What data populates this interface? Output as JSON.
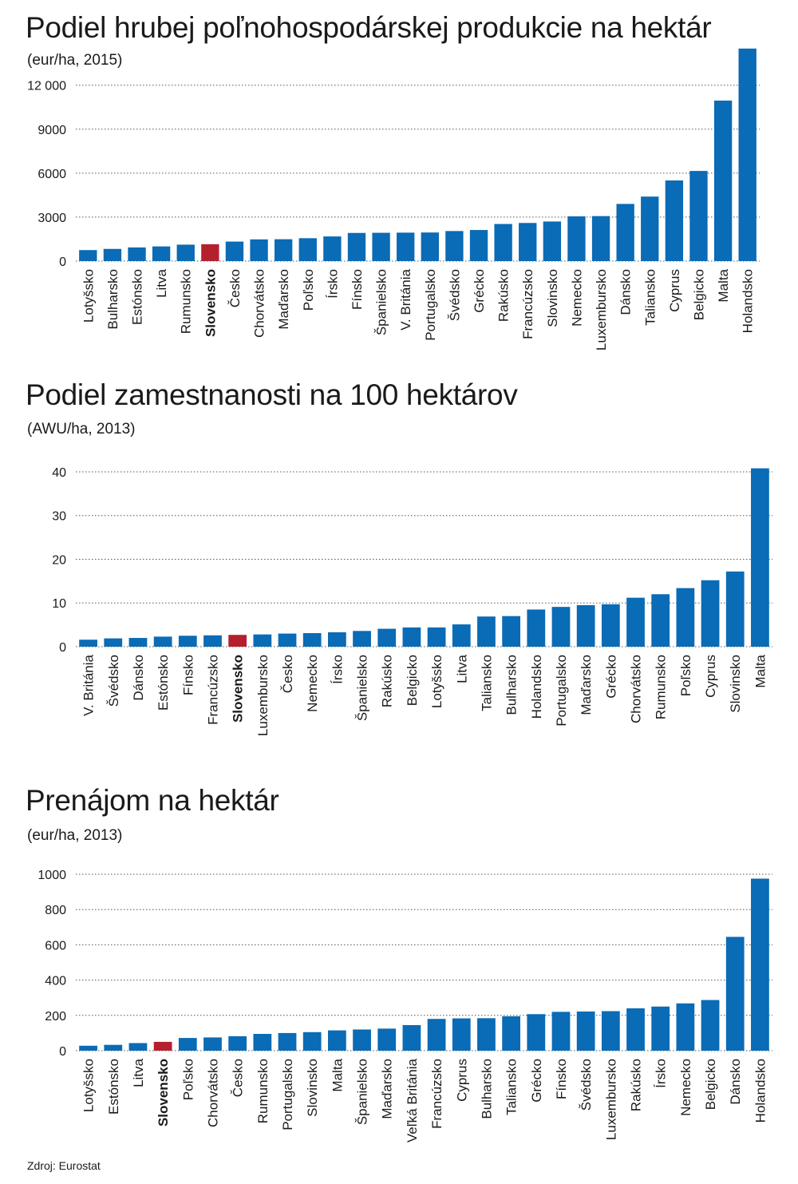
{
  "source": "Zdroj: Eurostat",
  "colors": {
    "bar": "#0a6bb6",
    "highlight": "#b5202e",
    "grid": "#555555"
  },
  "chart_data": [
    {
      "type": "bar",
      "title": "Podiel hrubej poľnohospodárskej produkcie na hektár",
      "subtitle": "(eur/ha, 2015)",
      "highlight": "Slovensko",
      "ylim": [
        0,
        14000
      ],
      "yticks": [
        0,
        3000,
        6000,
        9000,
        12000
      ],
      "ytick_labels": [
        "0",
        "3000",
        "6000",
        "9000",
        "12 000"
      ],
      "categories": [
        "Lotyšsko",
        "Bulharsko",
        "Estónsko",
        "Litva",
        "Rumunsko",
        "Slovensko",
        "Česko",
        "Chorvátsko",
        "Maďarsko",
        "Poľsko",
        "Írsko",
        "Fínsko",
        "Španielsko",
        "V. Británia",
        "Portugalsko",
        "Švédsko",
        "Grécko",
        "Rakúsko",
        "Francúzsko",
        "Slovinsko",
        "Nemecko",
        "Luxembursko",
        "Dánsko",
        "Taliansko",
        "Cyprus",
        "Belgicko",
        "Malta",
        "Holandsko"
      ],
      "values": [
        750,
        830,
        930,
        1000,
        1120,
        1150,
        1330,
        1480,
        1490,
        1560,
        1680,
        1920,
        1930,
        1940,
        1950,
        2050,
        2120,
        2530,
        2600,
        2700,
        3050,
        3070,
        3900,
        4400,
        5500,
        6150,
        10950,
        14500
      ]
    },
    {
      "type": "bar",
      "title": "Podiel zamestnanosti na 100 hektárov",
      "subtitle": "(AWU/ha, 2013)",
      "highlight": "Slovensko",
      "ylim": [
        0,
        42
      ],
      "yticks": [
        0,
        10,
        20,
        30,
        40
      ],
      "ytick_labels": [
        "0",
        "10",
        "20",
        "30",
        "40"
      ],
      "categories": [
        "V. Británia",
        "Švédsko",
        "Dánsko",
        "Estónsko",
        "Fínsko",
        "Francúzsko",
        "Slovensko",
        "Luxembursko",
        "Česko",
        "Nemecko",
        "Írsko",
        "Španielsko",
        "Rakúsko",
        "Belgicko",
        "Lotyšsko",
        "Litva",
        "Taliansko",
        "Bulharsko",
        "Holandsko",
        "Portugalsko",
        "Maďarsko",
        "Grécko",
        "Chorvátsko",
        "Rumunsko",
        "Poľsko",
        "Cyprus",
        "Slovinsko",
        "Malta"
      ],
      "values": [
        1.6,
        1.9,
        2.0,
        2.3,
        2.5,
        2.6,
        2.7,
        2.8,
        3.0,
        3.1,
        3.3,
        3.6,
        4.1,
        4.4,
        4.4,
        5.1,
        6.9,
        7.0,
        8.5,
        9.1,
        9.5,
        9.7,
        11.2,
        12.0,
        13.4,
        15.2,
        17.2,
        40.8
      ]
    },
    {
      "type": "bar",
      "title": "Prenájom na hektár",
      "subtitle": "(eur/ha, 2013)",
      "highlight": "Slovensko",
      "ylim": [
        0,
        1000
      ],
      "yticks": [
        0,
        200,
        400,
        600,
        800,
        1000
      ],
      "ytick_labels": [
        "0",
        "200",
        "400",
        "600",
        "800",
        "1000"
      ],
      "categories": [
        "Lotyšsko",
        "Estónsko",
        "Litva",
        "Slovensko",
        "Poľsko",
        "Chorvátsko",
        "Česko",
        "Rumunsko",
        "Portugalsko",
        "Slovinsko",
        "Malta",
        "Španielsko",
        "Maďarsko",
        "Veľká Británia",
        "Francúzsko",
        "Cyprus",
        "Bulharsko",
        "Taliansko",
        "Grécko",
        "Fínsko",
        "Švédsko",
        "Luxembursko",
        "Rakúsko",
        "Írsko",
        "Nemecko",
        "Belgicko",
        "Dánsko",
        "Holandsko"
      ],
      "values": [
        28,
        33,
        43,
        50,
        72,
        75,
        82,
        95,
        100,
        105,
        115,
        120,
        125,
        145,
        180,
        183,
        184,
        195,
        207,
        220,
        222,
        224,
        240,
        250,
        268,
        287,
        645,
        975
      ]
    }
  ]
}
